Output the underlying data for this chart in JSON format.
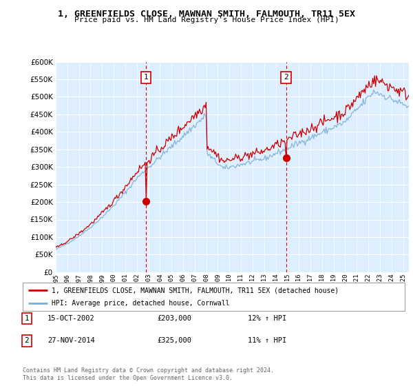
{
  "title": "1, GREENFIELDS CLOSE, MAWNAN SMITH, FALMOUTH, TR11 5EX",
  "subtitle": "Price paid vs. HM Land Registry's House Price Index (HPI)",
  "legend_line1": "1, GREENFIELDS CLOSE, MAWNAN SMITH, FALMOUTH, TR11 5EX (detached house)",
  "legend_line2": "HPI: Average price, detached house, Cornwall",
  "transaction1_label": "1",
  "transaction1_date": "15-OCT-2002",
  "transaction1_price": "£203,000",
  "transaction1_hpi": "12% ↑ HPI",
  "transaction1_year": 2002.79,
  "transaction1_value": 203000,
  "transaction2_label": "2",
  "transaction2_date": "27-NOV-2014",
  "transaction2_price": "£325,000",
  "transaction2_hpi": "11% ↑ HPI",
  "transaction2_year": 2014.9,
  "transaction2_value": 325000,
  "footer": "Contains HM Land Registry data © Crown copyright and database right 2024.\nThis data is licensed under the Open Government Licence v3.0.",
  "ylim": [
    0,
    600000
  ],
  "ytick_values": [
    0,
    50000,
    100000,
    150000,
    200000,
    250000,
    300000,
    350000,
    400000,
    450000,
    500000,
    550000,
    600000
  ],
  "red_color": "#cc0000",
  "blue_color": "#7ab0d4",
  "background_color": "#ffffff",
  "plot_bg_color": "#ddeeff",
  "grid_color": "#ffffff",
  "xmin": 1995.0,
  "xmax": 2025.5
}
